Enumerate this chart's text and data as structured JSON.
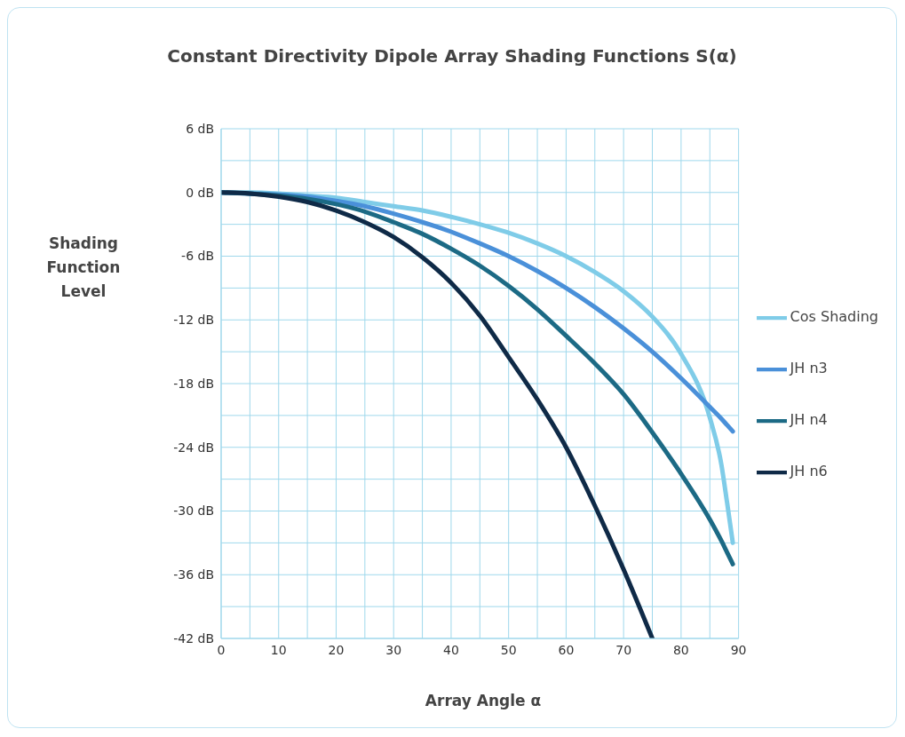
{
  "chart_data": {
    "type": "line",
    "title": "Constant Directivity Dipole Array Shading Functions S(α)",
    "xlabel": "Array Angle α",
    "ylabel": "Shading Function Level",
    "x": [
      0,
      5,
      10,
      15,
      20,
      25,
      30,
      35,
      40,
      45,
      50,
      55,
      60,
      65,
      70,
      75,
      80,
      85,
      87,
      88,
      89
    ],
    "series": [
      {
        "name": "Cos Shading",
        "color": "#7fcce8",
        "values": [
          0,
          0,
          -0.1,
          -0.3,
          -0.5,
          -0.9,
          -1.3,
          -1.7,
          -2.3,
          -3,
          -3.8,
          -4.8,
          -6,
          -7.5,
          -9.3,
          -11.7,
          -15.2,
          -21.2,
          -25.6,
          -29.2,
          -33
        ]
      },
      {
        "name": "JH n3",
        "color": "#4a90d9",
        "values": [
          0,
          -0.1,
          -0.2,
          -0.4,
          -0.8,
          -1.3,
          -2,
          -2.8,
          -3.7,
          -4.8,
          -6,
          -7.4,
          -9,
          -10.8,
          -12.8,
          -15,
          -17.5,
          -20.2,
          -21.3,
          -21.9,
          -22.5
        ]
      },
      {
        "name": "JH n4",
        "color": "#1c6a85",
        "values": [
          0,
          -0.1,
          -0.3,
          -0.6,
          -1.1,
          -1.8,
          -2.8,
          -3.9,
          -5.3,
          -6.9,
          -8.8,
          -11,
          -13.5,
          -16.1,
          -19,
          -22.6,
          -26.5,
          -30.8,
          -32.8,
          -33.9,
          -35
        ]
      },
      {
        "name": "JH n6",
        "color": "#0f2a47",
        "values": [
          0,
          -0.1,
          -0.4,
          -0.9,
          -1.7,
          -2.8,
          -4.2,
          -6.1,
          -8.5,
          -11.6,
          -15.5,
          -19.5,
          -24,
          -29.5,
          -35.5,
          -42,
          null,
          null,
          null,
          null,
          null
        ]
      }
    ],
    "xlim": [
      0,
      90
    ],
    "xticks": [
      0,
      {
        "value": 5,
        "label": null
      },
      10,
      {
        "value": 15,
        "label": null
      },
      20,
      {
        "value": 25,
        "label": null
      },
      30,
      {
        "value": 35,
        "label": null
      },
      40,
      {
        "value": 45,
        "label": null
      },
      50,
      {
        "value": 55,
        "label": null
      },
      60,
      {
        "value": 65,
        "label": null
      },
      70,
      {
        "value": 75,
        "label": null
      },
      80,
      {
        "value": 85,
        "label": null
      },
      90
    ],
    "ylim": [
      -42,
      6
    ],
    "yticks": [
      {
        "value": -42,
        "label": "-42 dB"
      },
      {
        "value": -39,
        "label": null
      },
      {
        "value": -36,
        "label": "-36 dB"
      },
      {
        "value": -33,
        "label": null
      },
      {
        "value": -30,
        "label": "-30 dB"
      },
      {
        "value": -27,
        "label": null
      },
      {
        "value": -24,
        "label": "-24 dB"
      },
      {
        "value": -21,
        "label": null
      },
      {
        "value": -18,
        "label": "-18 dB"
      },
      {
        "value": -15,
        "label": null
      },
      {
        "value": -12,
        "label": "-12 dB"
      },
      {
        "value": -9,
        "label": null
      },
      {
        "value": -6,
        "label": "-6 dB"
      },
      {
        "value": -3,
        "label": null
      },
      {
        "value": 0,
        "label": "0 dB"
      },
      {
        "value": 3,
        "label": null
      },
      {
        "value": 6,
        "label": "6 dB"
      }
    ],
    "grid": true,
    "legend": "right",
    "marker": "none",
    "line_style": "solid"
  }
}
